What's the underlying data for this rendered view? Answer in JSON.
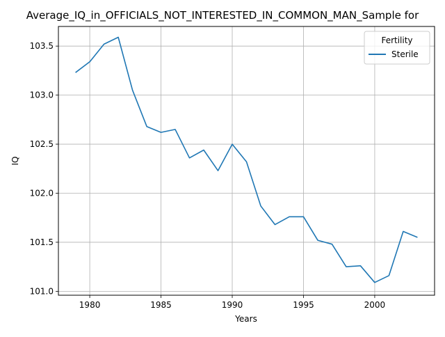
{
  "chart_data": {
    "type": "line",
    "title": "Average_IQ_in_OFFICIALS_NOT_INTERESTED_IN_COMMON_MAN_Sample for",
    "xlabel": "Years",
    "ylabel": "IQ",
    "xlim": [
      1977.8,
      2004.2
    ],
    "ylim": [
      100.96,
      103.7
    ],
    "x_ticks": [
      1980,
      1985,
      1990,
      1995,
      2000
    ],
    "x_tick_labels": [
      "1980",
      "1985",
      "1990",
      "1995",
      "2000"
    ],
    "y_ticks": [
      101.0,
      101.5,
      102.0,
      102.5,
      103.0,
      103.5
    ],
    "y_tick_labels": [
      "101.0",
      "101.5",
      "102.0",
      "102.5",
      "103.0",
      "103.5"
    ],
    "grid": true,
    "legend": {
      "title": "Fertility",
      "placement": "top-right",
      "entries": [
        "Sterile"
      ]
    },
    "series": [
      {
        "name": "Sterile",
        "color": "#1f77b4",
        "x": [
          1979,
          1980,
          1981,
          1982,
          1983,
          1984,
          1985,
          1986,
          1987,
          1988,
          1989,
          1990,
          1991,
          1992,
          1993,
          1994,
          1995,
          1996,
          1997,
          1998,
          1999,
          2000,
          2001,
          2002,
          2003
        ],
        "y": [
          103.23,
          103.34,
          103.52,
          103.59,
          103.05,
          102.68,
          102.62,
          102.65,
          102.36,
          102.44,
          102.23,
          102.5,
          102.32,
          101.87,
          101.68,
          101.76,
          101.76,
          101.52,
          101.48,
          101.25,
          101.26,
          101.09,
          101.16,
          101.61,
          101.55
        ]
      }
    ]
  }
}
